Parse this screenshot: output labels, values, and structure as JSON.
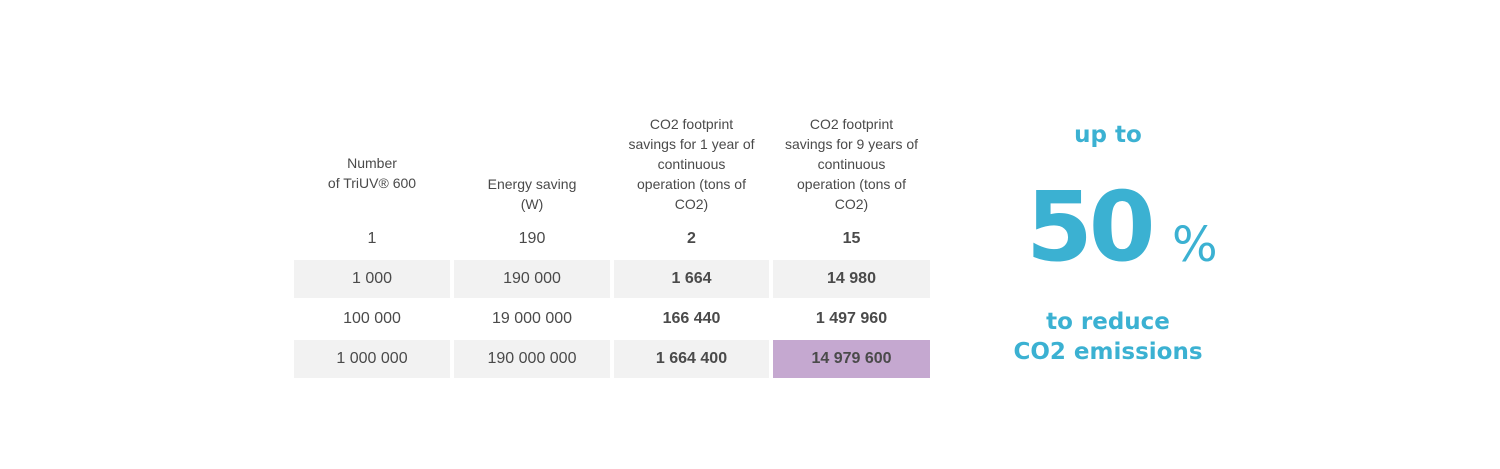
{
  "table": {
    "headers": [
      "Number\nof TriUV® 600",
      "Energy saving\n(W)",
      "CO2 footprint\nsavings for 1 year of\ncontinuous\noperation (tons of\nCO2)",
      "CO2 footprint\nsavings  for 9 years of\ncontinuous\noperation (tons of\nCO2)"
    ],
    "rows": [
      [
        "1",
        "190",
        "2",
        "15"
      ],
      [
        "1 000",
        "190 000",
        "1 664",
        "14 980"
      ],
      [
        "100 000",
        "19 000 000",
        "166 440",
        "1 497 960"
      ],
      [
        "1 000 000",
        "190 000 000",
        "1 664 400",
        "14 979 600"
      ]
    ],
    "highlight_color": "#c5a8d0",
    "shade_color": "#f2f2f2"
  },
  "callout": {
    "line_top": "up to",
    "number": "50",
    "unit": "%",
    "line_bottom_1": "to reduce",
    "line_bottom_2": "CO2 emissions",
    "color": "#3bb1d2"
  }
}
